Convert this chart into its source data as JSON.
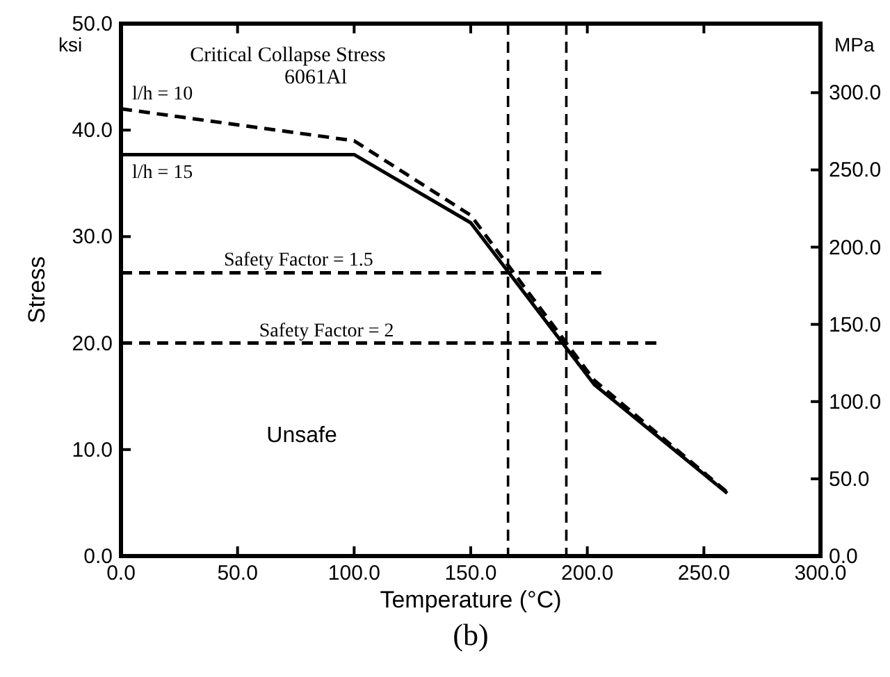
{
  "chart_data": {
    "type": "line",
    "title": "Critical Collapse Stress",
    "subtitle": "6061Al",
    "xlabel": "Temperature (°C)",
    "ylabel": "Stress",
    "y2label": "MPa",
    "annotations": [
      "ksi",
      "Unsafe",
      "(b)"
    ],
    "xlim": [
      0,
      300
    ],
    "xticks": [
      {
        "value": 0,
        "label": "0.0"
      },
      {
        "value": 50,
        "label": "50.0"
      },
      {
        "value": 100,
        "label": "100.0"
      },
      {
        "value": 150,
        "label": "150.0"
      },
      {
        "value": 200,
        "label": "200.0"
      },
      {
        "value": 250,
        "label": "250.0"
      },
      {
        "value": 300,
        "label": "300.0"
      }
    ],
    "ylim": [
      0,
      50
    ],
    "yticks": [
      {
        "value": 0,
        "label": "0.0"
      },
      {
        "value": 10,
        "label": "10.0"
      },
      {
        "value": 20,
        "label": "20.0"
      },
      {
        "value": 30,
        "label": "30.0"
      },
      {
        "value": 40,
        "label": "40.0"
      },
      {
        "value": 50,
        "label": "50.0"
      }
    ],
    "y2lim": [
      0,
      344.7
    ],
    "y2ticks": [
      {
        "value": 0,
        "label": "0.0"
      },
      {
        "value": 50,
        "label": "50.0"
      },
      {
        "value": 100,
        "label": "100.0"
      },
      {
        "value": 150,
        "label": "150.0"
      },
      {
        "value": 200,
        "label": "200.0"
      },
      {
        "value": 250,
        "label": "250.0"
      },
      {
        "value": 300,
        "label": "300.0"
      }
    ],
    "grid": false,
    "marker": "none",
    "ref_lines": [
      {
        "axis": "x",
        "value": 166,
        "line_style": "dashed",
        "color": "#000000"
      },
      {
        "axis": "x",
        "value": 191,
        "line_style": "dashed",
        "color": "#000000"
      }
    ],
    "series": [
      {
        "name": "l/h = 10",
        "color": "#000000",
        "line_style": "dashed",
        "x": [
          0,
          100,
          150,
          203,
          260
        ],
        "values": [
          42,
          39,
          32,
          16.5,
          6
        ]
      },
      {
        "name": "l/h = 15",
        "color": "#000000",
        "line_style": "solid",
        "x": [
          0,
          100,
          150,
          203,
          260
        ],
        "values": [
          37.7,
          37.7,
          31.3,
          16.1,
          5.9
        ]
      },
      {
        "name": "Safety Factor = 1.5",
        "color": "#000000",
        "line_style": "dashed",
        "x": [
          0,
          206
        ],
        "values": [
          26.6,
          26.6
        ]
      },
      {
        "name": "Safety Factor = 2",
        "color": "#000000",
        "line_style": "dashed",
        "x": [
          0,
          230
        ],
        "values": [
          20,
          20
        ]
      }
    ]
  }
}
